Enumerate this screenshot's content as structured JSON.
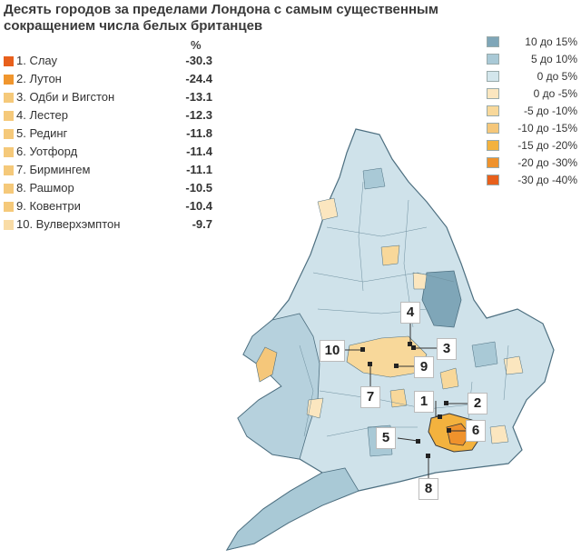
{
  "title": "Десять городов за пределами Лондона с самым существенным сокращением числа белых британцев",
  "pct_header": "%",
  "ranking": [
    {
      "label": "1. Слау",
      "value": "-30.3",
      "color": "#e8601c"
    },
    {
      "label": "2. Лутон",
      "value": "-24.4",
      "color": "#f0962e"
    },
    {
      "label": "3. Одби и Вигстон",
      "value": "-13.1",
      "color": "#f5c97a"
    },
    {
      "label": "4. Лестер",
      "value": "-12.3",
      "color": "#f5c97a"
    },
    {
      "label": "5. Рединг",
      "value": "-11.8",
      "color": "#f5c97a"
    },
    {
      "label": "6. Уотфорд",
      "value": "-11.4",
      "color": "#f5c97a"
    },
    {
      "label": "7. Бирмингем",
      "value": "-11.1",
      "color": "#f5c97a"
    },
    {
      "label": "8. Рашмор",
      "value": "-10.5",
      "color": "#f5c97a"
    },
    {
      "label": "9. Ковентри",
      "value": "-10.4",
      "color": "#f5c97a"
    },
    {
      "label": "10. Вулверхэмптон",
      "value": "-9.7",
      "color": "#f9dca6"
    }
  ],
  "legend": [
    {
      "label": "10 до 15%",
      "color": "#7fa6b8"
    },
    {
      "label": "5 до 10%",
      "color": "#a9c9d6"
    },
    {
      "label": "0 до 5%",
      "color": "#d3e6ec"
    },
    {
      "label": "0 до -5%",
      "color": "#fbe6bf"
    },
    {
      "label": "-5 до -10%",
      "color": "#f8d89a"
    },
    {
      "label": "-10 до -15%",
      "color": "#f5c77a"
    },
    {
      "label": "-15 до -20%",
      "color": "#f3b23e"
    },
    {
      "label": "-20 до -30%",
      "color": "#ef922c"
    },
    {
      "label": "-30 до -40%",
      "color": "#e8601c"
    }
  ],
  "callouts": [
    "1",
    "2",
    "3",
    "4",
    "5",
    "6",
    "7",
    "8",
    "9",
    "10"
  ]
}
